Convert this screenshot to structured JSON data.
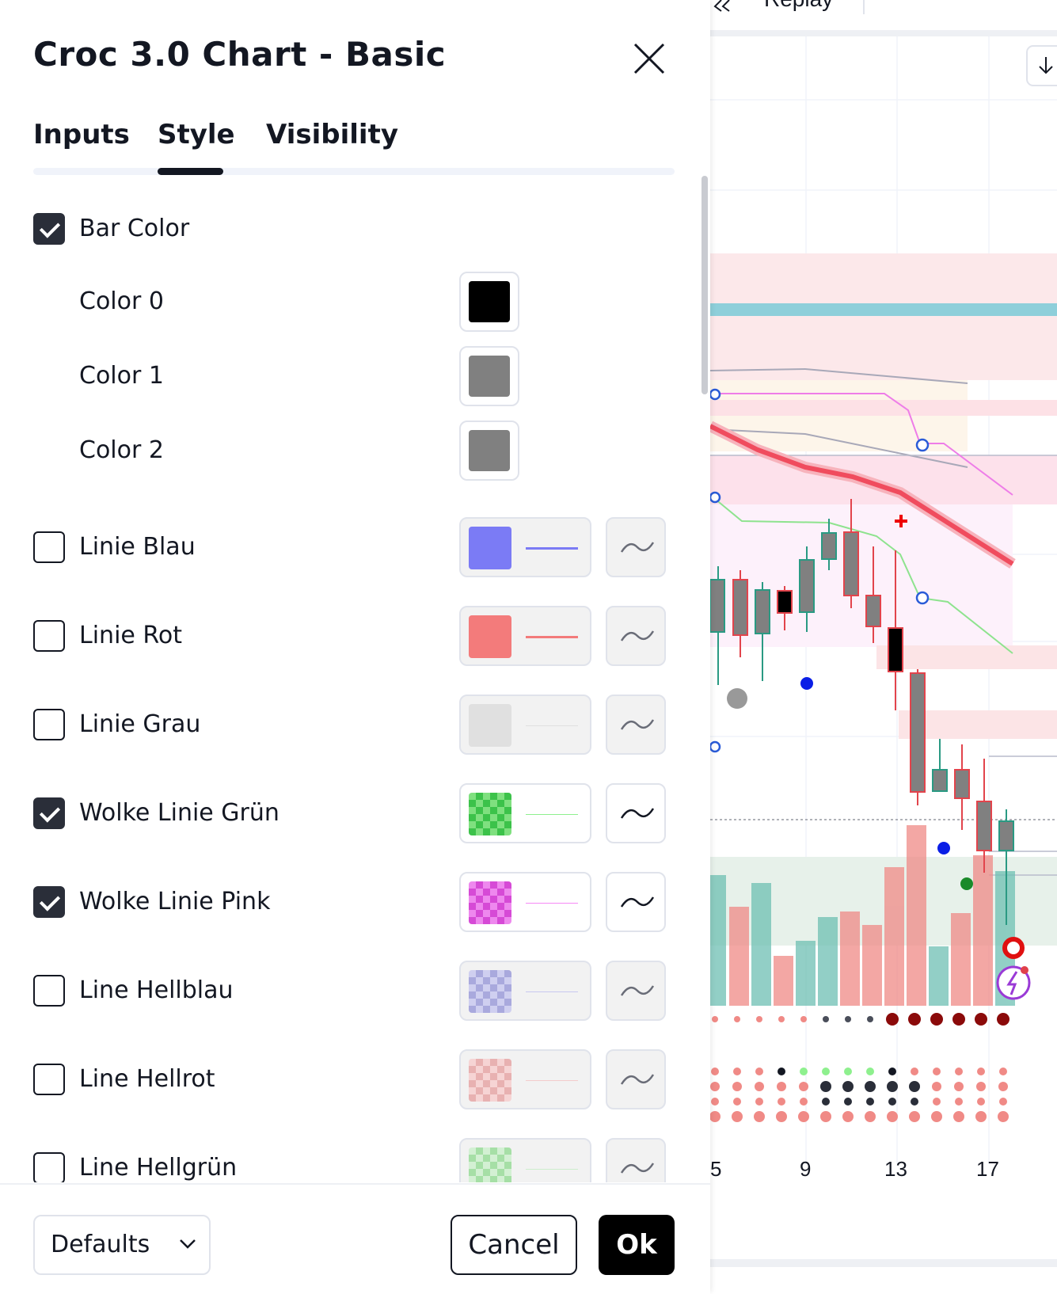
{
  "dialog": {
    "title": "Croc 3.0 Chart - Basic",
    "tabs": [
      {
        "label": "Inputs",
        "active": false
      },
      {
        "label": "Style",
        "active": true
      },
      {
        "label": "Visibility",
        "active": false
      }
    ],
    "rows": [
      {
        "label": "Bar Color",
        "checked": true
      },
      {
        "label": "Color 0",
        "color": "#000000"
      },
      {
        "label": "Color 1",
        "color": "#808080"
      },
      {
        "label": "Color 2",
        "color": "#808080"
      },
      {
        "label": "Linie Blau",
        "checked": false,
        "color": "#7b7bf5"
      },
      {
        "label": "Linie Rot",
        "checked": false,
        "color": "#f37b7b"
      },
      {
        "label": "Linie Grau",
        "checked": false,
        "color": "#e0e0e0"
      },
      {
        "label": "Wolke Linie Grün",
        "checked": true,
        "color": "#8ef08e"
      },
      {
        "label": "Wolke Linie Pink",
        "checked": true,
        "color": "#f58af5"
      },
      {
        "label": "Line Hellblau",
        "checked": false,
        "color": "#c8c8f0"
      },
      {
        "label": "Line Hellrot",
        "checked": false,
        "color": "#f3cccc"
      },
      {
        "label": "Line Hellgrün",
        "checked": false,
        "color": "#cdeecd"
      }
    ],
    "footer": {
      "defaults_label": "Defaults",
      "cancel_label": "Cancel",
      "ok_label": "Ok"
    }
  },
  "chart": {
    "header_partial_text": "Replay",
    "x_tick_labels": [
      "5",
      "9",
      "13",
      "17"
    ]
  }
}
